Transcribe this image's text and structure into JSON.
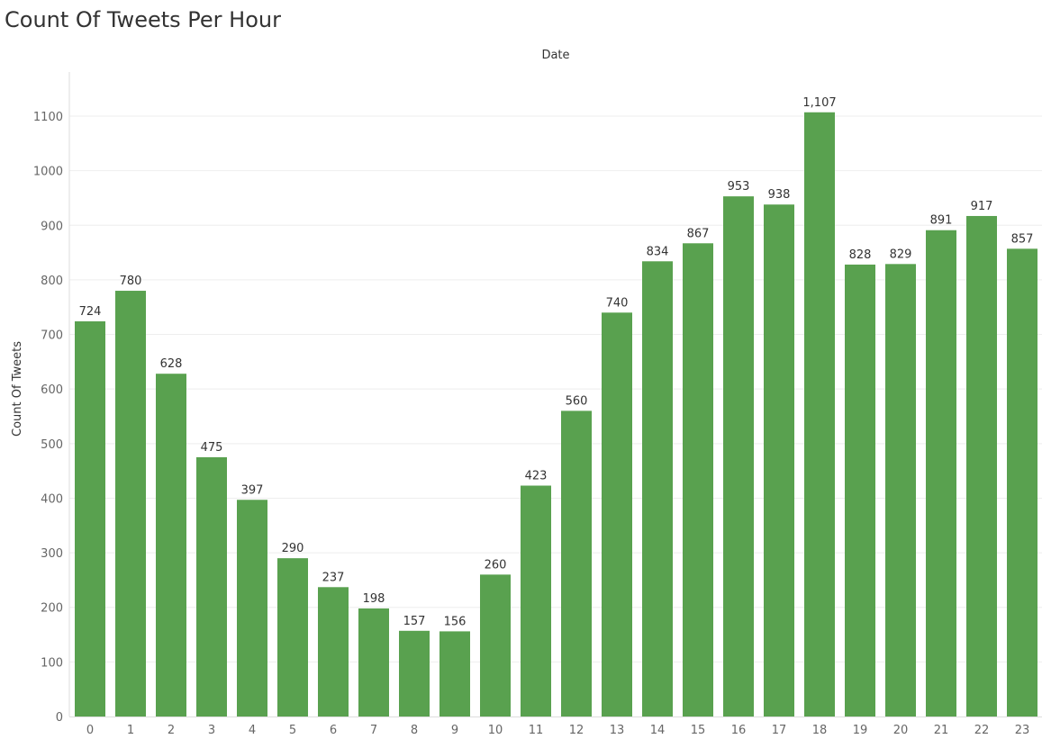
{
  "title": "Count Of Tweets Per Hour",
  "chart_data": {
    "type": "bar",
    "title": "Count Of Tweets Per Hour",
    "xlabel": "Date",
    "ylabel": "Count Of Tweets",
    "categories": [
      "0",
      "1",
      "2",
      "3",
      "4",
      "5",
      "6",
      "7",
      "8",
      "9",
      "10",
      "11",
      "12",
      "13",
      "14",
      "15",
      "16",
      "17",
      "18",
      "19",
      "20",
      "21",
      "22",
      "23"
    ],
    "values": [
      724,
      780,
      628,
      475,
      397,
      290,
      237,
      198,
      157,
      156,
      260,
      423,
      560,
      740,
      834,
      867,
      953,
      938,
      1107,
      828,
      829,
      891,
      917,
      857
    ],
    "data_labels": [
      "724",
      "780",
      "628",
      "475",
      "397",
      "290",
      "237",
      "198",
      "157",
      "156",
      "260",
      "423",
      "560",
      "740",
      "834",
      "867",
      "953",
      "938",
      "1,107",
      "828",
      "829",
      "891",
      "917",
      "857"
    ],
    "yticks": [
      0,
      100,
      200,
      300,
      400,
      500,
      600,
      700,
      800,
      900,
      1000,
      1100
    ],
    "ylim": [
      0,
      1100
    ],
    "grid": true,
    "bar_color": "#59a14f"
  }
}
